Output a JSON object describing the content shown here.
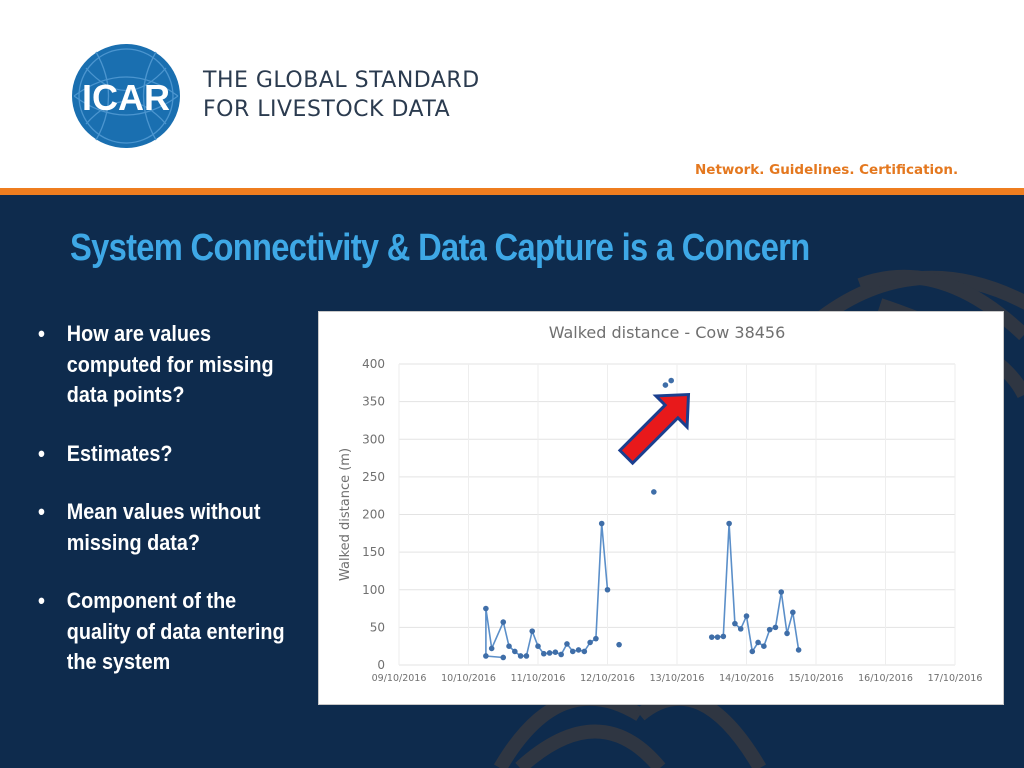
{
  "header": {
    "logo_text": "ICAR",
    "tagline_line1": "THE GLOBAL STANDARD",
    "tagline_line2": "FOR LIVESTOCK DATA",
    "motto": "Network. Guidelines. Certification.",
    "logo_color": "#1a6fb0",
    "accent_color": "#ee7d1f"
  },
  "slide": {
    "title": "System Connectivity & Data Capture is a Concern",
    "bullet_symbol": "•",
    "bullets": [
      "How are values computed for missing data points?",
      "Estimates?",
      "Mean values without missing data?",
      "Component of the quality of data entering the system"
    ],
    "background_color": "#0e2b4d",
    "title_color": "#3ea8e6"
  },
  "chart_data": {
    "type": "line",
    "title": "Walked distance - Cow 38456",
    "xlabel": "",
    "ylabel": "Walked distance (m)",
    "ylim": [
      0,
      400
    ],
    "yticks": [
      0,
      50,
      100,
      150,
      200,
      250,
      300,
      350,
      400
    ],
    "xticks": [
      "09/10/2016",
      "10/10/2016",
      "11/10/2016",
      "12/10/2016",
      "13/10/2016",
      "14/10/2016",
      "15/10/2016",
      "16/10/2016",
      "17/10/2016"
    ],
    "grid": true,
    "legend": "none",
    "line_color": "#5b8fc9",
    "series": [
      {
        "segments": [
          [
            [
              "10/10/2016 12:00",
              10
            ],
            [
              "10/10/2016 06:00",
              12
            ],
            [
              "10/10/2016 06:00",
              75
            ],
            [
              "10/10/2016 08:00",
              22
            ],
            [
              "10/10/2016 12:00",
              57
            ],
            [
              "10/10/2016 14:00",
              25
            ],
            [
              "10/10/2016 16:00",
              18
            ],
            [
              "10/10/2016 18:00",
              12
            ],
            [
              "10/10/2016 20:00",
              12
            ],
            [
              "10/10/2016 22:00",
              45
            ],
            [
              "11/10/2016 00:00",
              25
            ],
            [
              "11/10/2016 02:00",
              15
            ],
            [
              "11/10/2016 04:00",
              16
            ],
            [
              "11/10/2016 06:00",
              17
            ],
            [
              "11/10/2016 08:00",
              14
            ],
            [
              "11/10/2016 10:00",
              28
            ],
            [
              "11/10/2016 12:00",
              18
            ],
            [
              "11/10/2016 14:00",
              20
            ],
            [
              "11/10/2016 16:00",
              18
            ],
            [
              "11/10/2016 18:00",
              30
            ],
            [
              "11/10/2016 20:00",
              35
            ],
            [
              "11/10/2016 22:00",
              188
            ],
            [
              "12/10/2016 00:00",
              100
            ]
          ],
          [
            [
              "13/10/2016 12:00",
              37
            ],
            [
              "13/10/2016 14:00",
              37
            ],
            [
              "13/10/2016 16:00",
              38
            ],
            [
              "13/10/2016 18:00",
              188
            ],
            [
              "13/10/2016 20:00",
              55
            ],
            [
              "13/10/2016 22:00",
              48
            ],
            [
              "14/10/2016 00:00",
              65
            ],
            [
              "14/10/2016 02:00",
              18
            ],
            [
              "14/10/2016 04:00",
              30
            ],
            [
              "14/10/2016 06:00",
              25
            ],
            [
              "14/10/2016 08:00",
              47
            ],
            [
              "14/10/2016 10:00",
              50
            ],
            [
              "14/10/2016 12:00",
              97
            ],
            [
              "14/10/2016 14:00",
              42
            ],
            [
              "14/10/2016 16:00",
              70
            ],
            [
              "14/10/2016 18:00",
              20
            ]
          ]
        ],
        "isolated_points": [
          [
            "12/10/2016 04:00",
            27
          ],
          [
            "12/10/2016 16:00",
            230
          ],
          [
            "12/10/2016 20:00",
            372
          ],
          [
            "12/10/2016 22:00",
            378
          ]
        ]
      }
    ]
  }
}
